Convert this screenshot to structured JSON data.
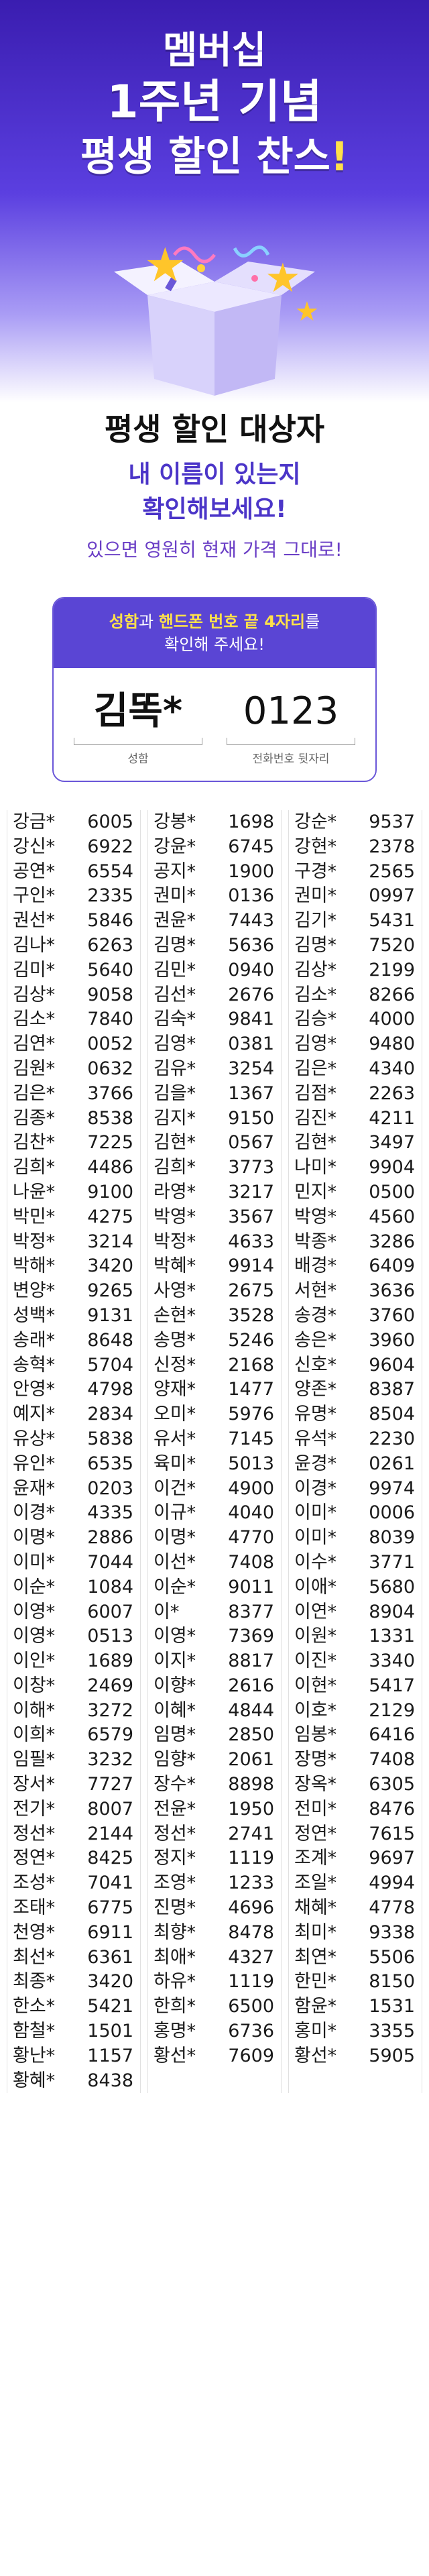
{
  "hero": {
    "line1": "멤버십",
    "line2": "1주년 기념",
    "line3_a": "평생 할인 찬스",
    "line3_b": "!"
  },
  "intro": {
    "heading": "평생 할인 대상자",
    "sub1": "내 이름이 있는지",
    "sub2": "확인해보세요!",
    "note": "있으면 영원히 현재 가격 그대로!"
  },
  "card": {
    "head_hl1": "성함",
    "head_t1": "과 ",
    "head_hl2": "핸드폰 번호 끝 4자리",
    "head_t2": "를",
    "head_line2": "확인해 주세요!",
    "example_name": "김똑*",
    "example_phone": "0123",
    "name_label": "성함",
    "phone_label": "전화번호 뒷자리"
  },
  "colors": {
    "brand": "#5a45d4",
    "accent": "#ffe14a",
    "star": "#ffc52a"
  },
  "columns": [
    [
      [
        "강금*",
        "6005"
      ],
      [
        "강신*",
        "6922"
      ],
      [
        "공연*",
        "6554"
      ],
      [
        "구인*",
        "2335"
      ],
      [
        "권선*",
        "5846"
      ],
      [
        "김나*",
        "6263"
      ],
      [
        "김미*",
        "5640"
      ],
      [
        "김상*",
        "9058"
      ],
      [
        "김소*",
        "7840"
      ],
      [
        "김연*",
        "0052"
      ],
      [
        "김원*",
        "0632"
      ],
      [
        "김은*",
        "3766"
      ],
      [
        "김종*",
        "8538"
      ],
      [
        "김찬*",
        "7225"
      ],
      [
        "김희*",
        "4486"
      ],
      [
        "나윤*",
        "9100"
      ],
      [
        "박민*",
        "4275"
      ],
      [
        "박정*",
        "3214"
      ],
      [
        "박해*",
        "3420"
      ],
      [
        "변양*",
        "9265"
      ],
      [
        "성백*",
        "9131"
      ],
      [
        "송래*",
        "8648"
      ],
      [
        "송혁*",
        "5704"
      ],
      [
        "안영*",
        "4798"
      ],
      [
        "예지*",
        "2834"
      ],
      [
        "유상*",
        "5838"
      ],
      [
        "유인*",
        "6535"
      ],
      [
        "윤재*",
        "0203"
      ],
      [
        "이경*",
        "4335"
      ],
      [
        "이명*",
        "2886"
      ],
      [
        "이미*",
        "7044"
      ],
      [
        "이순*",
        "1084"
      ],
      [
        "이영*",
        "6007"
      ],
      [
        "이영*",
        "0513"
      ],
      [
        "이인*",
        "1689"
      ],
      [
        "이창*",
        "2469"
      ],
      [
        "이해*",
        "3272"
      ],
      [
        "이희*",
        "6579"
      ],
      [
        "임필*",
        "3232"
      ],
      [
        "장서*",
        "7727"
      ],
      [
        "전기*",
        "8007"
      ],
      [
        "정선*",
        "2144"
      ],
      [
        "정연*",
        "8425"
      ],
      [
        "조성*",
        "7041"
      ],
      [
        "조태*",
        "6775"
      ],
      [
        "천영*",
        "6911"
      ],
      [
        "최선*",
        "6361"
      ],
      [
        "최종*",
        "3420"
      ],
      [
        "한소*",
        "5421"
      ],
      [
        "함철*",
        "1501"
      ],
      [
        "황난*",
        "1157"
      ],
      [
        "황혜*",
        "8438"
      ]
    ],
    [
      [
        "강봉*",
        "1698"
      ],
      [
        "강윤*",
        "6745"
      ],
      [
        "공지*",
        "1900"
      ],
      [
        "권미*",
        "0136"
      ],
      [
        "권윤*",
        "7443"
      ],
      [
        "김명*",
        "5636"
      ],
      [
        "김민*",
        "0940"
      ],
      [
        "김선*",
        "2676"
      ],
      [
        "김숙*",
        "9841"
      ],
      [
        "김영*",
        "0381"
      ],
      [
        "김유*",
        "3254"
      ],
      [
        "김을*",
        "1367"
      ],
      [
        "김지*",
        "9150"
      ],
      [
        "김현*",
        "0567"
      ],
      [
        "김희*",
        "3773"
      ],
      [
        "라영*",
        "3217"
      ],
      [
        "박영*",
        "3567"
      ],
      [
        "박정*",
        "4633"
      ],
      [
        "박혜*",
        "9914"
      ],
      [
        "사영*",
        "2675"
      ],
      [
        "손현*",
        "3528"
      ],
      [
        "송명*",
        "5246"
      ],
      [
        "신정*",
        "2168"
      ],
      [
        "양재*",
        "1477"
      ],
      [
        "오미*",
        "5976"
      ],
      [
        "유서*",
        "7145"
      ],
      [
        "육미*",
        "5013"
      ],
      [
        "이건*",
        "4900"
      ],
      [
        "이규*",
        "4040"
      ],
      [
        "이명*",
        "4770"
      ],
      [
        "이선*",
        "7408"
      ],
      [
        "이순*",
        "9011"
      ],
      [
        "이*",
        "8377"
      ],
      [
        "이영*",
        "7369"
      ],
      [
        "이지*",
        "8817"
      ],
      [
        "이향*",
        "2616"
      ],
      [
        "이혜*",
        "4844"
      ],
      [
        "임명*",
        "2850"
      ],
      [
        "임향*",
        "2061"
      ],
      [
        "장수*",
        "8898"
      ],
      [
        "전윤*",
        "1950"
      ],
      [
        "정선*",
        "2741"
      ],
      [
        "정지*",
        "1119"
      ],
      [
        "조영*",
        "1233"
      ],
      [
        "진명*",
        "4696"
      ],
      [
        "최향*",
        "8478"
      ],
      [
        "최애*",
        "4327"
      ],
      [
        "하유*",
        "1119"
      ],
      [
        "한희*",
        "6500"
      ],
      [
        "홍명*",
        "6736"
      ],
      [
        "황선*",
        "7609"
      ]
    ],
    [
      [
        "강순*",
        "9537"
      ],
      [
        "강현*",
        "2378"
      ],
      [
        "구경*",
        "2565"
      ],
      [
        "권미*",
        "0997"
      ],
      [
        "김기*",
        "5431"
      ],
      [
        "김명*",
        "7520"
      ],
      [
        "김상*",
        "2199"
      ],
      [
        "김소*",
        "8266"
      ],
      [
        "김승*",
        "4000"
      ],
      [
        "김영*",
        "9480"
      ],
      [
        "김은*",
        "4340"
      ],
      [
        "김점*",
        "2263"
      ],
      [
        "김진*",
        "4211"
      ],
      [
        "김현*",
        "3497"
      ],
      [
        "나미*",
        "9904"
      ],
      [
        "민지*",
        "0500"
      ],
      [
        "박영*",
        "4560"
      ],
      [
        "박종*",
        "3286"
      ],
      [
        "배경*",
        "6409"
      ],
      [
        "서현*",
        "3636"
      ],
      [
        "송경*",
        "3760"
      ],
      [
        "송은*",
        "3960"
      ],
      [
        "신호*",
        "9604"
      ],
      [
        "양존*",
        "8387"
      ],
      [
        "유명*",
        "8504"
      ],
      [
        "유석*",
        "2230"
      ],
      [
        "윤경*",
        "0261"
      ],
      [
        "이경*",
        "9974"
      ],
      [
        "이미*",
        "0006"
      ],
      [
        "이미*",
        "8039"
      ],
      [
        "이수*",
        "3771"
      ],
      [
        "이애*",
        "5680"
      ],
      [
        "이연*",
        "8904"
      ],
      [
        "이원*",
        "1331"
      ],
      [
        "이진*",
        "3340"
      ],
      [
        "이현*",
        "5417"
      ],
      [
        "이호*",
        "2129"
      ],
      [
        "임봉*",
        "6416"
      ],
      [
        "장명*",
        "7408"
      ],
      [
        "장옥*",
        "6305"
      ],
      [
        "전미*",
        "8476"
      ],
      [
        "정연*",
        "7615"
      ],
      [
        "조계*",
        "9697"
      ],
      [
        "조일*",
        "4994"
      ],
      [
        "채혜*",
        "4778"
      ],
      [
        "최미*",
        "9338"
      ],
      [
        "최연*",
        "5506"
      ],
      [
        "한민*",
        "8150"
      ],
      [
        "함윤*",
        "1531"
      ],
      [
        "홍미*",
        "3355"
      ],
      [
        "황선*",
        "5905"
      ]
    ]
  ]
}
